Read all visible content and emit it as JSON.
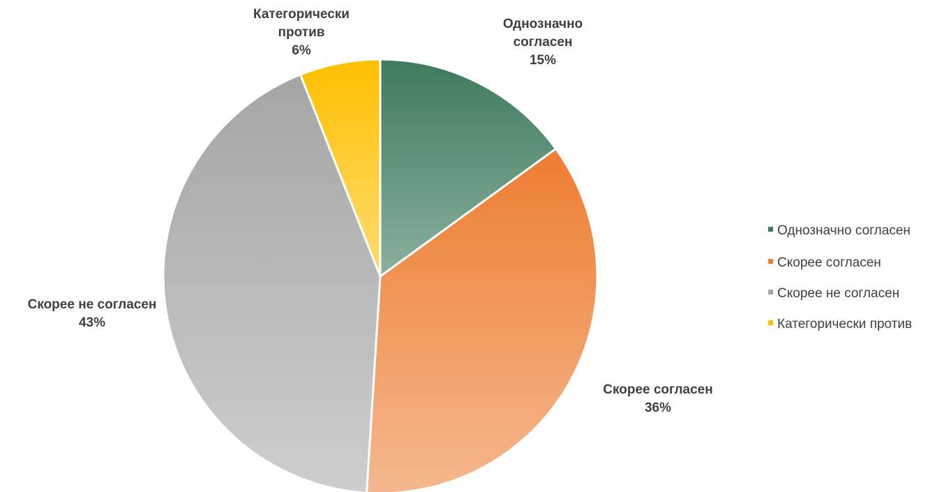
{
  "chart_data": {
    "type": "pie",
    "categories": [
      "Однозначно согласен",
      "Скорее согласен",
      "Скорее не согласен",
      "Категорически против"
    ],
    "values": [
      15,
      36,
      43,
      6
    ],
    "value_labels": [
      "15%",
      "36%",
      "43%",
      "6%"
    ],
    "colors": [
      "#3e7b5c",
      "#ed7d31",
      "#a5a5a5",
      "#ffc000"
    ],
    "legend": "right"
  }
}
